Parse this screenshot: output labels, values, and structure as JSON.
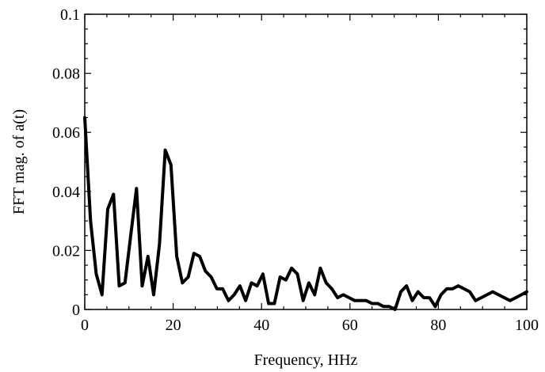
{
  "chart_data": {
    "type": "line",
    "title": "",
    "xlabel": "Frequency, HHz",
    "ylabel": "FFT mag. of a(t)",
    "xlim": [
      0,
      100
    ],
    "ylim": [
      0,
      0.1
    ],
    "x_ticks": [
      0,
      20,
      40,
      60,
      80,
      100
    ],
    "x_tick_labels": [
      "0",
      "20",
      "40",
      "60",
      "80",
      "100"
    ],
    "y_ticks": [
      0,
      0.02,
      0.04,
      0.06,
      0.08,
      0.1
    ],
    "y_tick_labels": [
      "0",
      "0.02",
      "0.04",
      "0.06",
      "0.08",
      "0.1"
    ],
    "grid": false,
    "legend": "none",
    "line_color": "#000000",
    "series": [
      {
        "x": [
          0,
          1.3,
          2.6,
          3.9,
          5.2,
          6.5,
          7.8,
          9.1,
          10.4,
          11.7,
          13.0,
          14.3,
          15.6,
          16.9,
          18.2,
          19.5,
          20.8,
          22.1,
          23.4,
          24.7,
          26.0,
          27.3,
          28.6,
          29.9,
          31.2,
          32.5,
          33.8,
          35.1,
          36.4,
          37.7,
          39.0,
          40.3,
          41.6,
          42.9,
          44.2,
          45.5,
          46.8,
          48.1,
          49.4,
          50.7,
          52.0,
          53.3,
          54.6,
          55.9,
          57.2,
          58.5,
          59.8,
          61.1,
          62.4,
          63.7,
          65.0,
          66.3,
          67.6,
          68.9,
          70.2,
          71.5,
          72.8,
          74.1,
          75.4,
          76.7,
          78.0,
          79.3,
          80.6,
          81.9,
          83.2,
          84.5,
          85.8,
          87.1,
          88.4,
          89.7,
          91.0,
          92.3,
          93.6,
          94.9,
          96.2,
          97.5,
          98.8,
          100
        ],
        "values": [
          0.065,
          0.03,
          0.012,
          0.005,
          0.034,
          0.039,
          0.008,
          0.009,
          0.025,
          0.041,
          0.008,
          0.018,
          0.005,
          0.022,
          0.054,
          0.049,
          0.018,
          0.009,
          0.011,
          0.019,
          0.018,
          0.013,
          0.011,
          0.007,
          0.007,
          0.003,
          0.005,
          0.008,
          0.003,
          0.009,
          0.008,
          0.012,
          0.002,
          0.002,
          0.011,
          0.01,
          0.014,
          0.012,
          0.003,
          0.009,
          0.005,
          0.014,
          0.009,
          0.007,
          0.004,
          0.005,
          0.004,
          0.003,
          0.003,
          0.003,
          0.002,
          0.002,
          0.001,
          0.001,
          0.0,
          0.006,
          0.008,
          0.003,
          0.006,
          0.004,
          0.004,
          0.001,
          0.005,
          0.007,
          0.007,
          0.008,
          0.007,
          0.006,
          0.003,
          0.004,
          0.005,
          0.006,
          0.005,
          0.004,
          0.003,
          0.004,
          0.005,
          0.006
        ]
      }
    ]
  }
}
